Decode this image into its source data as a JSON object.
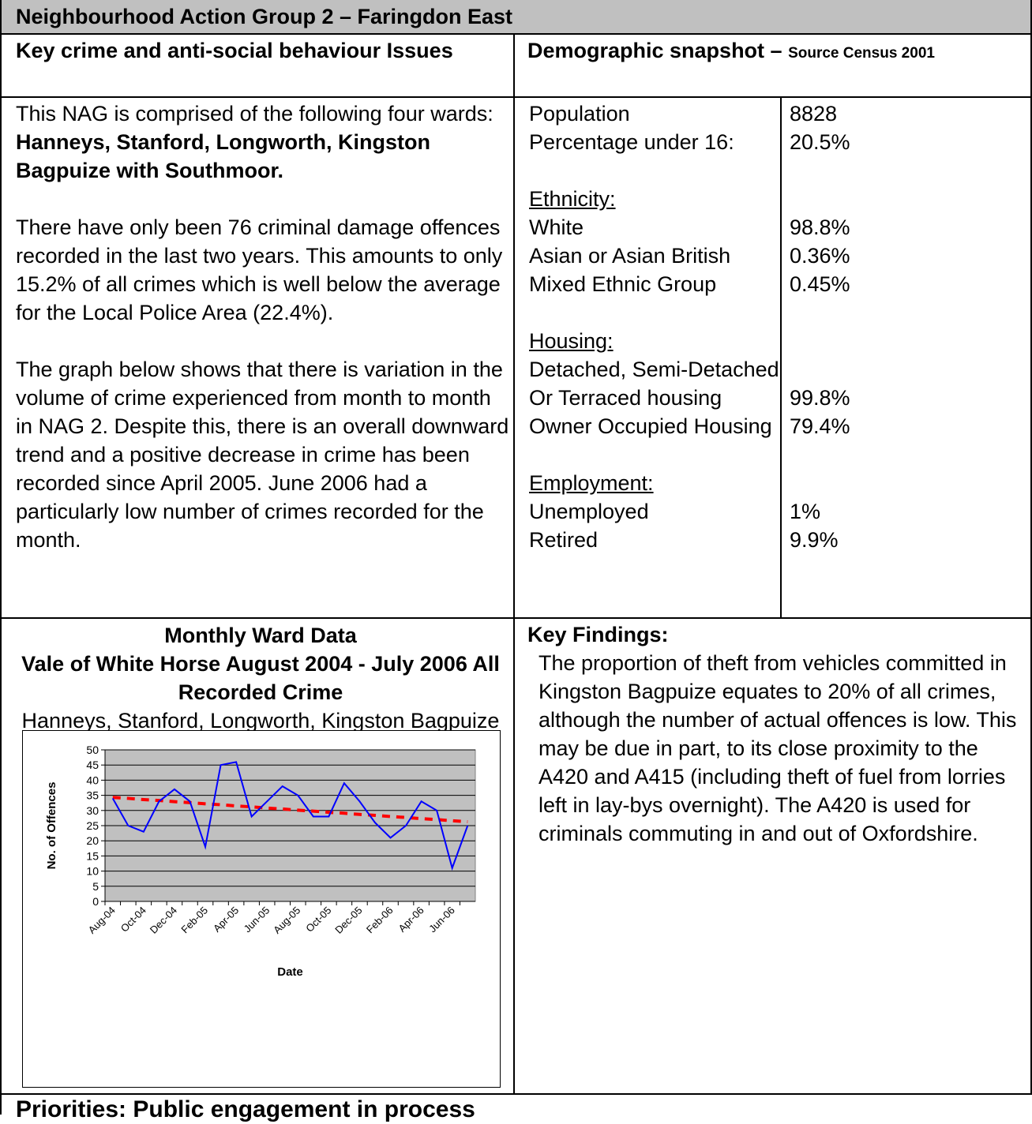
{
  "header": {
    "title": "Neighbourhood Action Group 2 – Faringdon East"
  },
  "issues": {
    "heading": "Key crime and anti-social behaviour Issues",
    "intro": "This NAG is comprised of the following four wards:  ",
    "wards": "Hanneys, Stanford, Longworth, Kingston Bagpuize with Southmoor.",
    "paragraphs": [
      "There have only been 76 criminal damage offences recorded in the last two years. This amounts to only 15.2% of all crimes which is well below the average for the Local Police Area (22.4%).",
      "The graph below shows that there is variation in the volume of crime experienced from month to month in NAG 2. Despite this, there is an overall downward trend and a positive decrease in crime has been recorded since April 2005. June 2006 had a particularly low number of crimes recorded for the month."
    ]
  },
  "demographics": {
    "title": "Demographic snapshot – ",
    "source": "Source Census 2001",
    "general": [
      {
        "label": "Population",
        "value": "8828"
      },
      {
        "label": "Percentage under 16:",
        "value": "20.5%"
      }
    ],
    "sections": [
      {
        "heading": "Ethnicity:",
        "rows": [
          {
            "label": "White",
            "value": "98.8%"
          },
          {
            "label": "Asian or Asian British",
            "value": "0.36%"
          },
          {
            "label": "Mixed Ethnic Group",
            "value": "0.45%"
          }
        ]
      },
      {
        "heading": "Housing:",
        "rows": [
          {
            "label": "Detached, Semi-Detached\nOr Terraced housing",
            "value": "99.8%"
          },
          {
            "label": "Owner Occupied Housing",
            "value": "79.4%"
          }
        ]
      },
      {
        "heading": "Employment:",
        "rows": [
          {
            "label": "Unemployed",
            "value": "1%"
          },
          {
            "label": "Retired",
            "value": "9.9%"
          }
        ]
      }
    ]
  },
  "key_findings": {
    "heading": "Key Findings:",
    "text": "The proportion of theft from vehicles committed in Kingston Bagpuize equates to 20% of all crimes, although the number of actual offences is low. This may be due in part, to its close proximity to the A420 and A415 (including theft of fuel from lorries left in lay-bys overnight). The A420 is used for criminals commuting in and out of Oxfordshire."
  },
  "priorities": "Priorities: Public engagement in process",
  "chart_data": {
    "type": "line",
    "title": "Monthly Ward Data",
    "subtitle": "Vale of White Horse August 2004 - July 2006 All Recorded Crime",
    "caption": "Hanneys, Stanford, Longworth, Kingston Bagpuize with Southmoor",
    "x_label": "Date",
    "y_label": "No. of Offences",
    "categories": [
      "Aug-04",
      null,
      "Oct-04",
      null,
      "Dec-04",
      null,
      "Feb-05",
      null,
      "Apr-05",
      null,
      "Jun-05",
      null,
      "Aug-05",
      null,
      "Oct-05",
      null,
      "Dec-05",
      null,
      "Feb-06",
      null,
      "Apr-06",
      null,
      "Jun-06",
      null
    ],
    "series": [
      {
        "color": "#0000ff",
        "values": [
          34,
          25,
          23,
          33,
          37,
          33,
          18,
          45,
          46,
          28,
          33,
          38,
          35,
          28,
          28,
          39,
          33,
          26,
          21,
          25,
          33,
          30,
          11,
          25
        ]
      },
      {
        "color": "#ff0000",
        "dashed": true,
        "values": [
          34.3,
          34.0,
          33.6,
          33.3,
          32.9,
          32.6,
          32.2,
          31.9,
          31.5,
          31.2,
          30.8,
          30.5,
          30.1,
          29.8,
          29.4,
          29.1,
          28.7,
          28.4,
          28.0,
          27.7,
          27.3,
          27.0,
          26.6,
          26.3
        ]
      }
    ],
    "ylim": [
      0,
      50
    ],
    "yticks": [
      0,
      5,
      10,
      15,
      20,
      25,
      30,
      35,
      40,
      45,
      50
    ],
    "grid": true,
    "plot_background": "#c0c0c0"
  }
}
